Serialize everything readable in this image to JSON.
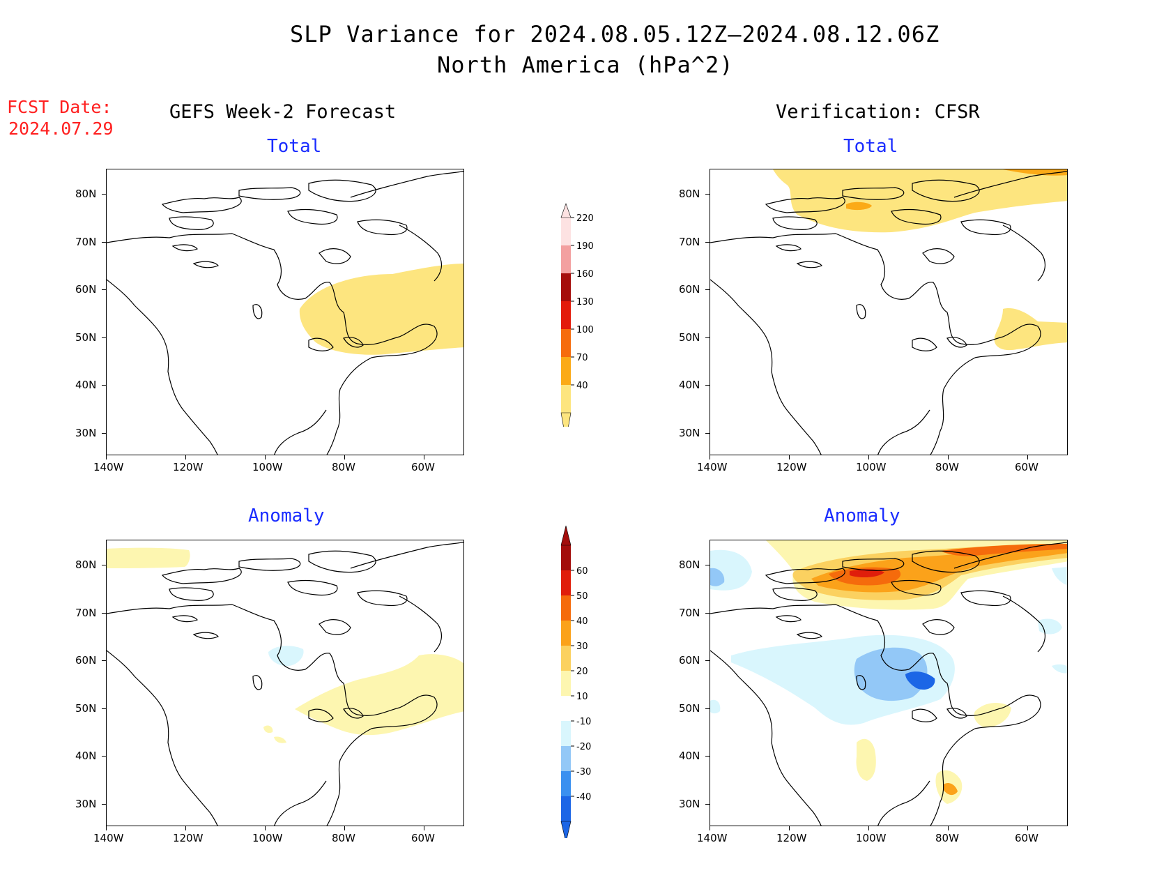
{
  "title": {
    "line1": "SLP Variance for 2024.08.05.12Z–2024.08.12.06Z",
    "line2": "North America (hPa^2)"
  },
  "fcst_date": {
    "label": "FCST Date:",
    "value": "2024.07.29"
  },
  "columns": {
    "left": "GEFS Week-2 Forecast",
    "right": "Verification: CFSR"
  },
  "panels": {
    "top_left": "Total",
    "top_right": "Total",
    "bottom_left": "Anomaly",
    "bottom_right": "Anomaly"
  },
  "axes": {
    "lon_labels": [
      "140W",
      "120W",
      "100W",
      "80W",
      "60W"
    ],
    "lat_labels": [
      "80N",
      "70N",
      "60N",
      "50N",
      "40N",
      "30N"
    ]
  },
  "colorbar_total": {
    "levels": [
      "40",
      "70",
      "100",
      "130",
      "160",
      "190",
      "220"
    ],
    "colors": [
      "#fde57f",
      "#fbaa17",
      "#f66c0d",
      "#e31b0b",
      "#a50d0b",
      "#f3a0a0",
      "#fde2e2"
    ]
  },
  "colorbar_anomaly": {
    "levels": [
      "-40",
      "-30",
      "-20",
      "-10",
      "10",
      "20",
      "30",
      "40",
      "50",
      "60"
    ],
    "colors": [
      "#1c66e6",
      "#3a90f0",
      "#93c8f7",
      "#d9f6fd",
      "#ffffff",
      "#fdf6b0",
      "#fbd160",
      "#fba21a",
      "#f56b0c",
      "#e01e0b",
      "#a30d0b"
    ]
  }
}
